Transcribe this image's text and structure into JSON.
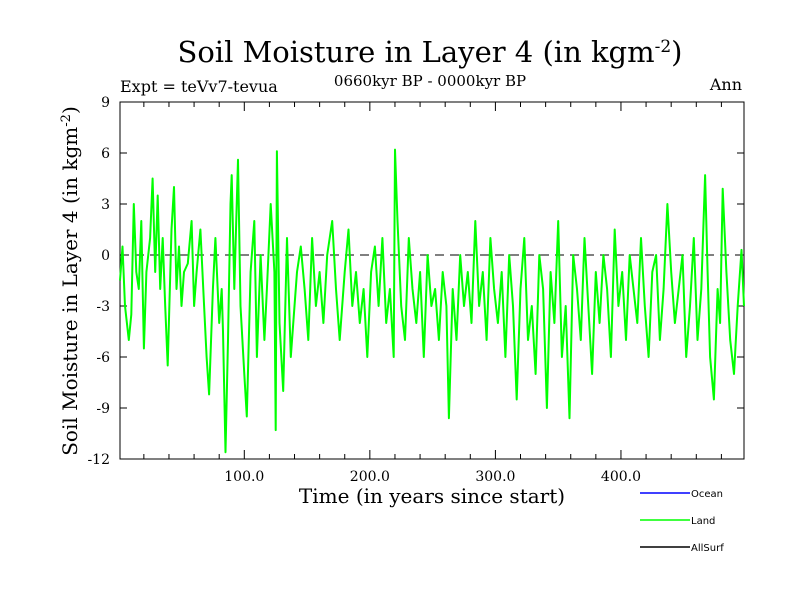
{
  "chart_data": {
    "type": "line",
    "title": "Soil Moisture in Layer 4 (in kgm",
    "title_sup": "-2",
    "title_close": ")",
    "subtitle": "0660kyr BP - 0000kyr BP",
    "expt_label": "Expt = teVv7-tevua",
    "season_label": "Ann",
    "xlabel": "Time (in years since start)",
    "ylabel": "Soil Moisture in Layer 4 (in kgm",
    "ylabel_sup": "-2",
    "ylabel_close": ")",
    "xlim": [
      1,
      498
    ],
    "ylim": [
      -12,
      9
    ],
    "x_ticks": [
      100,
      200,
      300,
      400
    ],
    "x_tick_labels": [
      "100.0",
      "200.0",
      "300.0",
      "400.0"
    ],
    "y_ticks": [
      -12,
      -9,
      -6,
      -3,
      0,
      3,
      6,
      9
    ],
    "y_tick_labels": [
      "-12",
      "-9",
      "-6",
      "-3",
      "0",
      "3",
      "6",
      "9"
    ],
    "zero_line": true,
    "grid": false,
    "legend_position": "bottom-right",
    "series": [
      {
        "name": "Ocean",
        "color": "#0000ff",
        "values": []
      },
      {
        "name": "Land",
        "color": "#00ff00",
        "x": [
          1,
          3,
          5,
          8,
          10,
          12,
          14,
          16,
          18,
          20,
          22,
          25,
          27,
          29,
          31,
          33,
          35,
          37,
          39,
          42,
          44,
          46,
          48,
          50,
          52,
          55,
          58,
          60,
          62,
          65,
          68,
          70,
          72,
          75,
          77,
          80,
          82,
          83,
          85,
          87,
          89,
          90,
          92,
          95,
          97,
          100,
          102,
          105,
          108,
          110,
          113,
          116,
          118,
          121,
          124,
          125,
          126,
          128,
          131,
          134,
          137,
          140,
          142,
          145,
          148,
          151,
          154,
          157,
          160,
          163,
          166,
          170,
          173,
          176,
          180,
          183,
          186,
          189,
          192,
          195,
          198,
          201,
          204,
          207,
          210,
          213,
          216,
          219,
          220,
          222,
          225,
          228,
          231,
          234,
          237,
          240,
          243,
          246,
          249,
          252,
          255,
          258,
          261,
          263,
          266,
          269,
          272,
          275,
          278,
          281,
          284,
          287,
          290,
          293,
          296,
          299,
          302,
          305,
          308,
          311,
          314,
          317,
          320,
          323,
          326,
          329,
          332,
          335,
          338,
          341,
          344,
          347,
          350,
          353,
          356,
          359,
          362,
          365,
          368,
          371,
          374,
          377,
          380,
          383,
          386,
          389,
          392,
          395,
          398,
          401,
          404,
          407,
          410,
          413,
          416,
          419,
          422,
          425,
          428,
          431,
          434,
          437,
          440,
          443,
          446,
          449,
          452,
          455,
          458,
          461,
          464,
          467,
          469,
          471,
          474,
          477,
          479,
          481,
          484,
          487,
          490,
          493,
          496,
          498
        ],
        "values": [
          -1.5,
          0.5,
          -3,
          -5,
          -3.5,
          3,
          -1,
          -2,
          2,
          -5.5,
          -1,
          1,
          4.5,
          -1,
          3.5,
          -2,
          1,
          -3,
          -6.5,
          1.5,
          4,
          -2,
          0.5,
          -3,
          -1,
          -0.5,
          2,
          -3,
          -1,
          1.5,
          -3,
          -6,
          -8.2,
          -2,
          1,
          -4,
          -2,
          -4.5,
          -11.6,
          -5,
          3,
          4.7,
          -2,
          5.6,
          -3,
          -7,
          -9.5,
          -1,
          2,
          -6,
          0,
          -5,
          -2,
          3,
          -1,
          -10.3,
          6.1,
          -4,
          -8,
          1,
          -6,
          -3,
          -1,
          0.5,
          -2,
          -5,
          1,
          -3,
          -1,
          -4,
          0,
          2,
          -2,
          -5,
          -1,
          1.5,
          -3,
          -1,
          -4,
          -2,
          -6,
          -1,
          0.5,
          -3,
          1,
          -4,
          -2,
          -6,
          6.2,
          2,
          -3,
          -5,
          1,
          -2,
          -4,
          -1,
          -6,
          0,
          -3,
          -2,
          -5,
          -1,
          -3,
          -9.6,
          -2,
          -5,
          0,
          -3,
          -1,
          -4,
          2,
          -3,
          -1,
          -5,
          1,
          -2,
          -4,
          -1,
          -6,
          0,
          -3,
          -8.5,
          -2,
          1,
          -5,
          -3,
          -7,
          0,
          -2,
          -9,
          -1,
          -4,
          2,
          -6,
          -3,
          -9.6,
          0,
          -2,
          -5,
          1,
          -3,
          -7,
          -1,
          -4,
          0,
          -2,
          -6,
          1.5,
          -3,
          -1,
          -5,
          0,
          -2,
          -4,
          1,
          -3,
          -6,
          -1,
          0,
          -5,
          -2,
          3,
          -1,
          -4,
          -2,
          0,
          -6,
          -3,
          1,
          -5,
          -2,
          4.7,
          -1,
          -6,
          -8.5,
          -2,
          -4,
          3.9,
          -1,
          -5,
          -7,
          -3,
          0.3,
          -3
        ]
      },
      {
        "name": "AllSurf",
        "color": "#000000",
        "values": []
      }
    ]
  }
}
